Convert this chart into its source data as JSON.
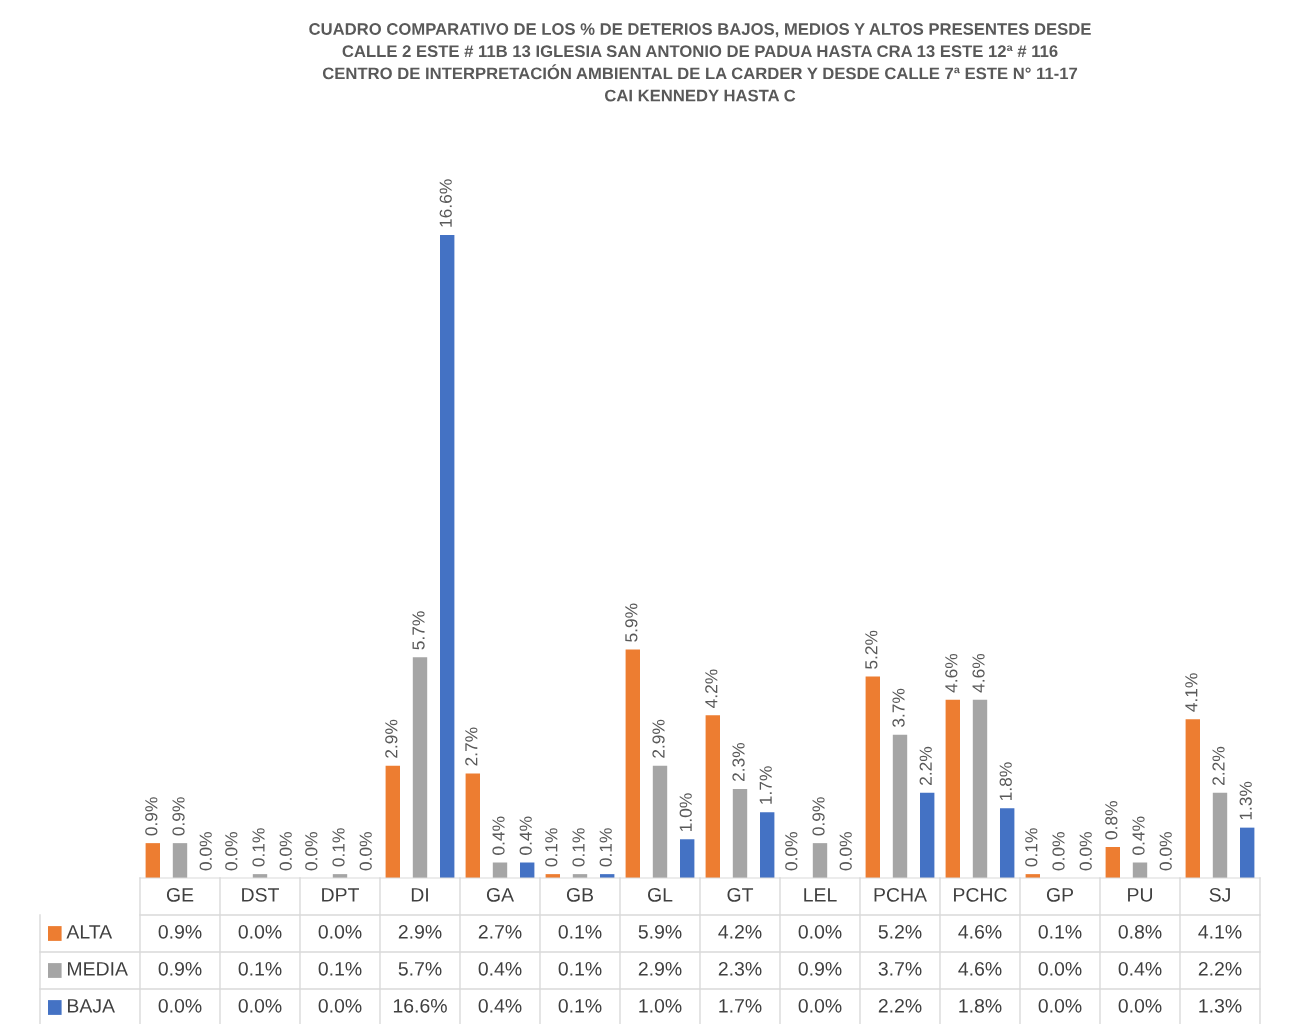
{
  "chart_data": {
    "type": "bar",
    "title": "CUADRO COMPARATIVO DE LOS % DE DETERIOS BAJOS, MEDIOS Y ALTOS PRESENTES DESDE\nCALLE 2 ESTE # 11B 13 IGLESIA SAN ANTONIO DE PADUA HASTA CRA 13 ESTE 12ª # 116\nCENTRO DE INTERPRETACIÓN AMBIENTAL DE LA CARDER Y DESDE CALLE 7ª ESTE N° 11-17\nCAI KENNEDY HASTA C",
    "categories": [
      "GE",
      "DST",
      "DPT",
      "DI",
      "GA",
      "GB",
      "GL",
      "GT",
      "LEL",
      "PCHA",
      "PCHC",
      "GP",
      "PU",
      "SJ"
    ],
    "series": [
      {
        "name": "ALTA",
        "color": "#ed7d31",
        "values": [
          0.9,
          0.0,
          0.0,
          2.9,
          2.7,
          0.1,
          5.9,
          4.2,
          0.0,
          5.2,
          4.6,
          0.1,
          0.8,
          4.1
        ],
        "value_labels": [
          "0.9%",
          "0.0%",
          "0.0%",
          "2.9%",
          "2.7%",
          "0.1%",
          "5.9%",
          "4.2%",
          "0.0%",
          "5.2%",
          "4.6%",
          "0.1%",
          "0.8%",
          "4.1%"
        ]
      },
      {
        "name": "MEDIA",
        "color": "#a5a5a5",
        "values": [
          0.9,
          0.1,
          0.1,
          5.7,
          0.4,
          0.1,
          2.9,
          2.3,
          0.9,
          3.7,
          4.6,
          0.0,
          0.4,
          2.2
        ],
        "value_labels": [
          "0.9%",
          "0.1%",
          "0.1%",
          "5.7%",
          "0.4%",
          "0.1%",
          "2.9%",
          "2.3%",
          "0.9%",
          "3.7%",
          "4.6%",
          "0.0%",
          "0.4%",
          "2.2%"
        ]
      },
      {
        "name": "BAJA",
        "color": "#4472c4",
        "values": [
          0.0,
          0.0,
          0.0,
          16.6,
          0.4,
          0.1,
          1.0,
          1.7,
          0.0,
          2.2,
          1.8,
          0.0,
          0.0,
          1.3
        ],
        "value_labels": [
          "0.0%",
          "0.0%",
          "0.0%",
          "16.6%",
          "0.4%",
          "0.1%",
          "1.0%",
          "1.7%",
          "0.0%",
          "2.2%",
          "1.8%",
          "0.0%",
          "0.0%",
          "1.3%"
        ]
      }
    ],
    "legend": "bottom"
  }
}
